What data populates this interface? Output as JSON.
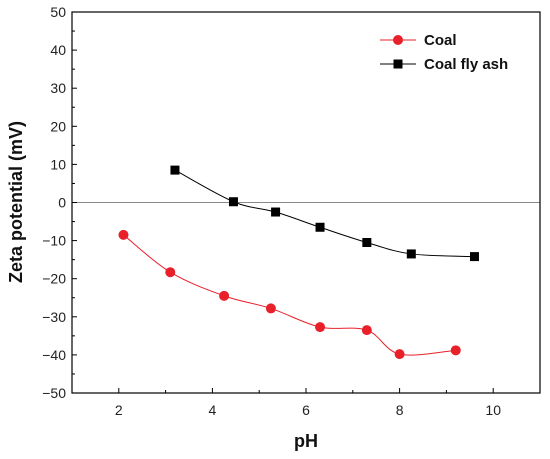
{
  "chart_data": {
    "type": "line",
    "title": "",
    "xlabel": "pH",
    "ylabel": "Zeta potential (mV)",
    "xlim": [
      1,
      11
    ],
    "ylim": [
      -50,
      50
    ],
    "xticks": [
      2,
      4,
      6,
      8,
      10
    ],
    "yticks": [
      -50,
      -40,
      -30,
      -20,
      -10,
      0,
      10,
      20,
      30,
      40,
      50
    ],
    "grid": false,
    "zero_line": true,
    "legend_position": "top-right",
    "series": [
      {
        "name": "Coal",
        "color": "#e8202a",
        "marker": "circle",
        "x": [
          2.1,
          3.1,
          4.25,
          5.25,
          6.3,
          7.3,
          8.0,
          9.2
        ],
        "y": [
          -8.5,
          -18.3,
          -24.5,
          -27.8,
          -32.7,
          -33.5,
          -39.8,
          -38.8
        ]
      },
      {
        "name": "Coal fly ash",
        "color": "#000000",
        "marker": "square",
        "x": [
          3.2,
          4.45,
          5.35,
          6.3,
          7.3,
          8.25,
          9.6
        ],
        "y": [
          8.5,
          0.2,
          -2.5,
          -6.5,
          -10.5,
          -13.5,
          -14.2
        ]
      }
    ]
  }
}
